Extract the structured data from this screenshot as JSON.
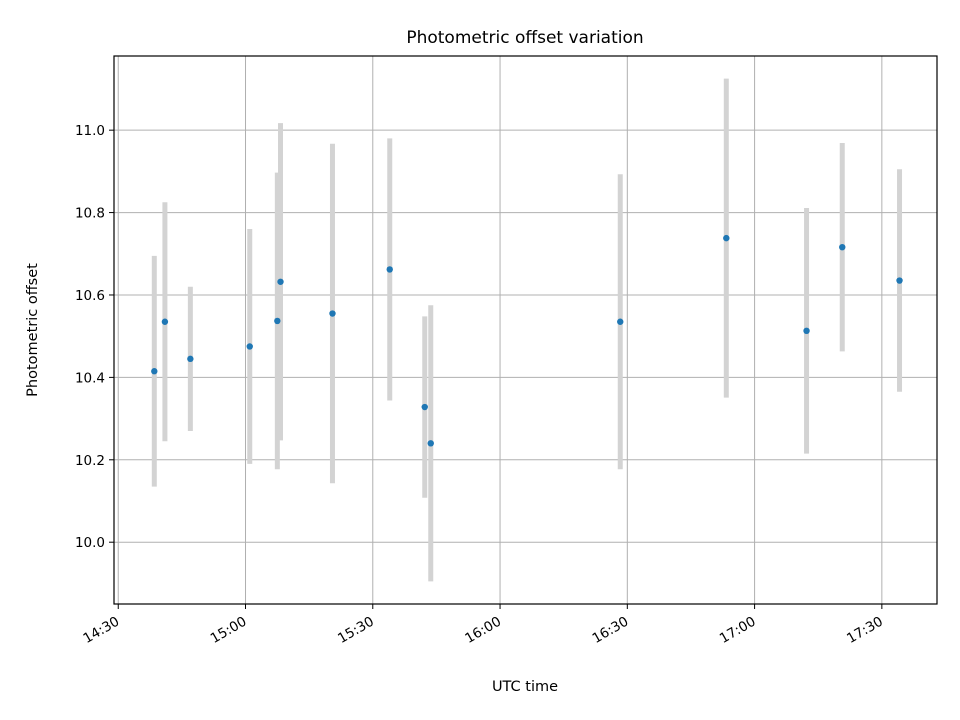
{
  "chart_data": {
    "type": "scatter",
    "title": "Photometric offset variation",
    "xlabel": "UTC time",
    "ylabel": "Photometric offset",
    "x_unit": "UTC time of day (HH:MM)",
    "xlim": [
      "14:29",
      "17:43"
    ],
    "ylim": [
      9.85,
      11.18
    ],
    "x_ticks": [
      "14:30",
      "15:00",
      "15:30",
      "16:00",
      "16:30",
      "17:00",
      "17:30"
    ],
    "y_ticks": [
      10.0,
      10.2,
      10.4,
      10.6,
      10.8,
      11.0
    ],
    "y_tick_labels": [
      "10.0",
      "10.2",
      "10.4",
      "10.6",
      "10.8",
      "11.0"
    ],
    "grid": true,
    "colors": {
      "marker": "#1f77b4",
      "errorbar": "#d3d3d3",
      "grid": "#b0b0b0"
    },
    "points": [
      {
        "t": "14:38:30",
        "y": 10.415,
        "err": 0.28
      },
      {
        "t": "14:41:00",
        "y": 10.535,
        "err": 0.29
      },
      {
        "t": "14:47:00",
        "y": 10.445,
        "err": 0.175
      },
      {
        "t": "15:01:00",
        "y": 10.475,
        "err": 0.285
      },
      {
        "t": "15:07:30",
        "y": 10.537,
        "err": 0.36
      },
      {
        "t": "15:08:15",
        "y": 10.632,
        "err": 0.385
      },
      {
        "t": "15:20:30",
        "y": 10.555,
        "err": 0.412
      },
      {
        "t": "15:34:00",
        "y": 10.662,
        "err": 0.318
      },
      {
        "t": "15:42:15",
        "y": 10.328,
        "err": 0.22
      },
      {
        "t": "15:43:40",
        "y": 10.24,
        "err": 0.335
      },
      {
        "t": "16:28:20",
        "y": 10.535,
        "err": 0.358
      },
      {
        "t": "16:53:20",
        "y": 10.738,
        "err": 0.387
      },
      {
        "t": "17:12:15",
        "y": 10.513,
        "err": 0.298
      },
      {
        "t": "17:20:40",
        "y": 10.716,
        "err": 0.253
      },
      {
        "t": "17:34:10",
        "y": 10.635,
        "err": 0.27
      }
    ]
  }
}
